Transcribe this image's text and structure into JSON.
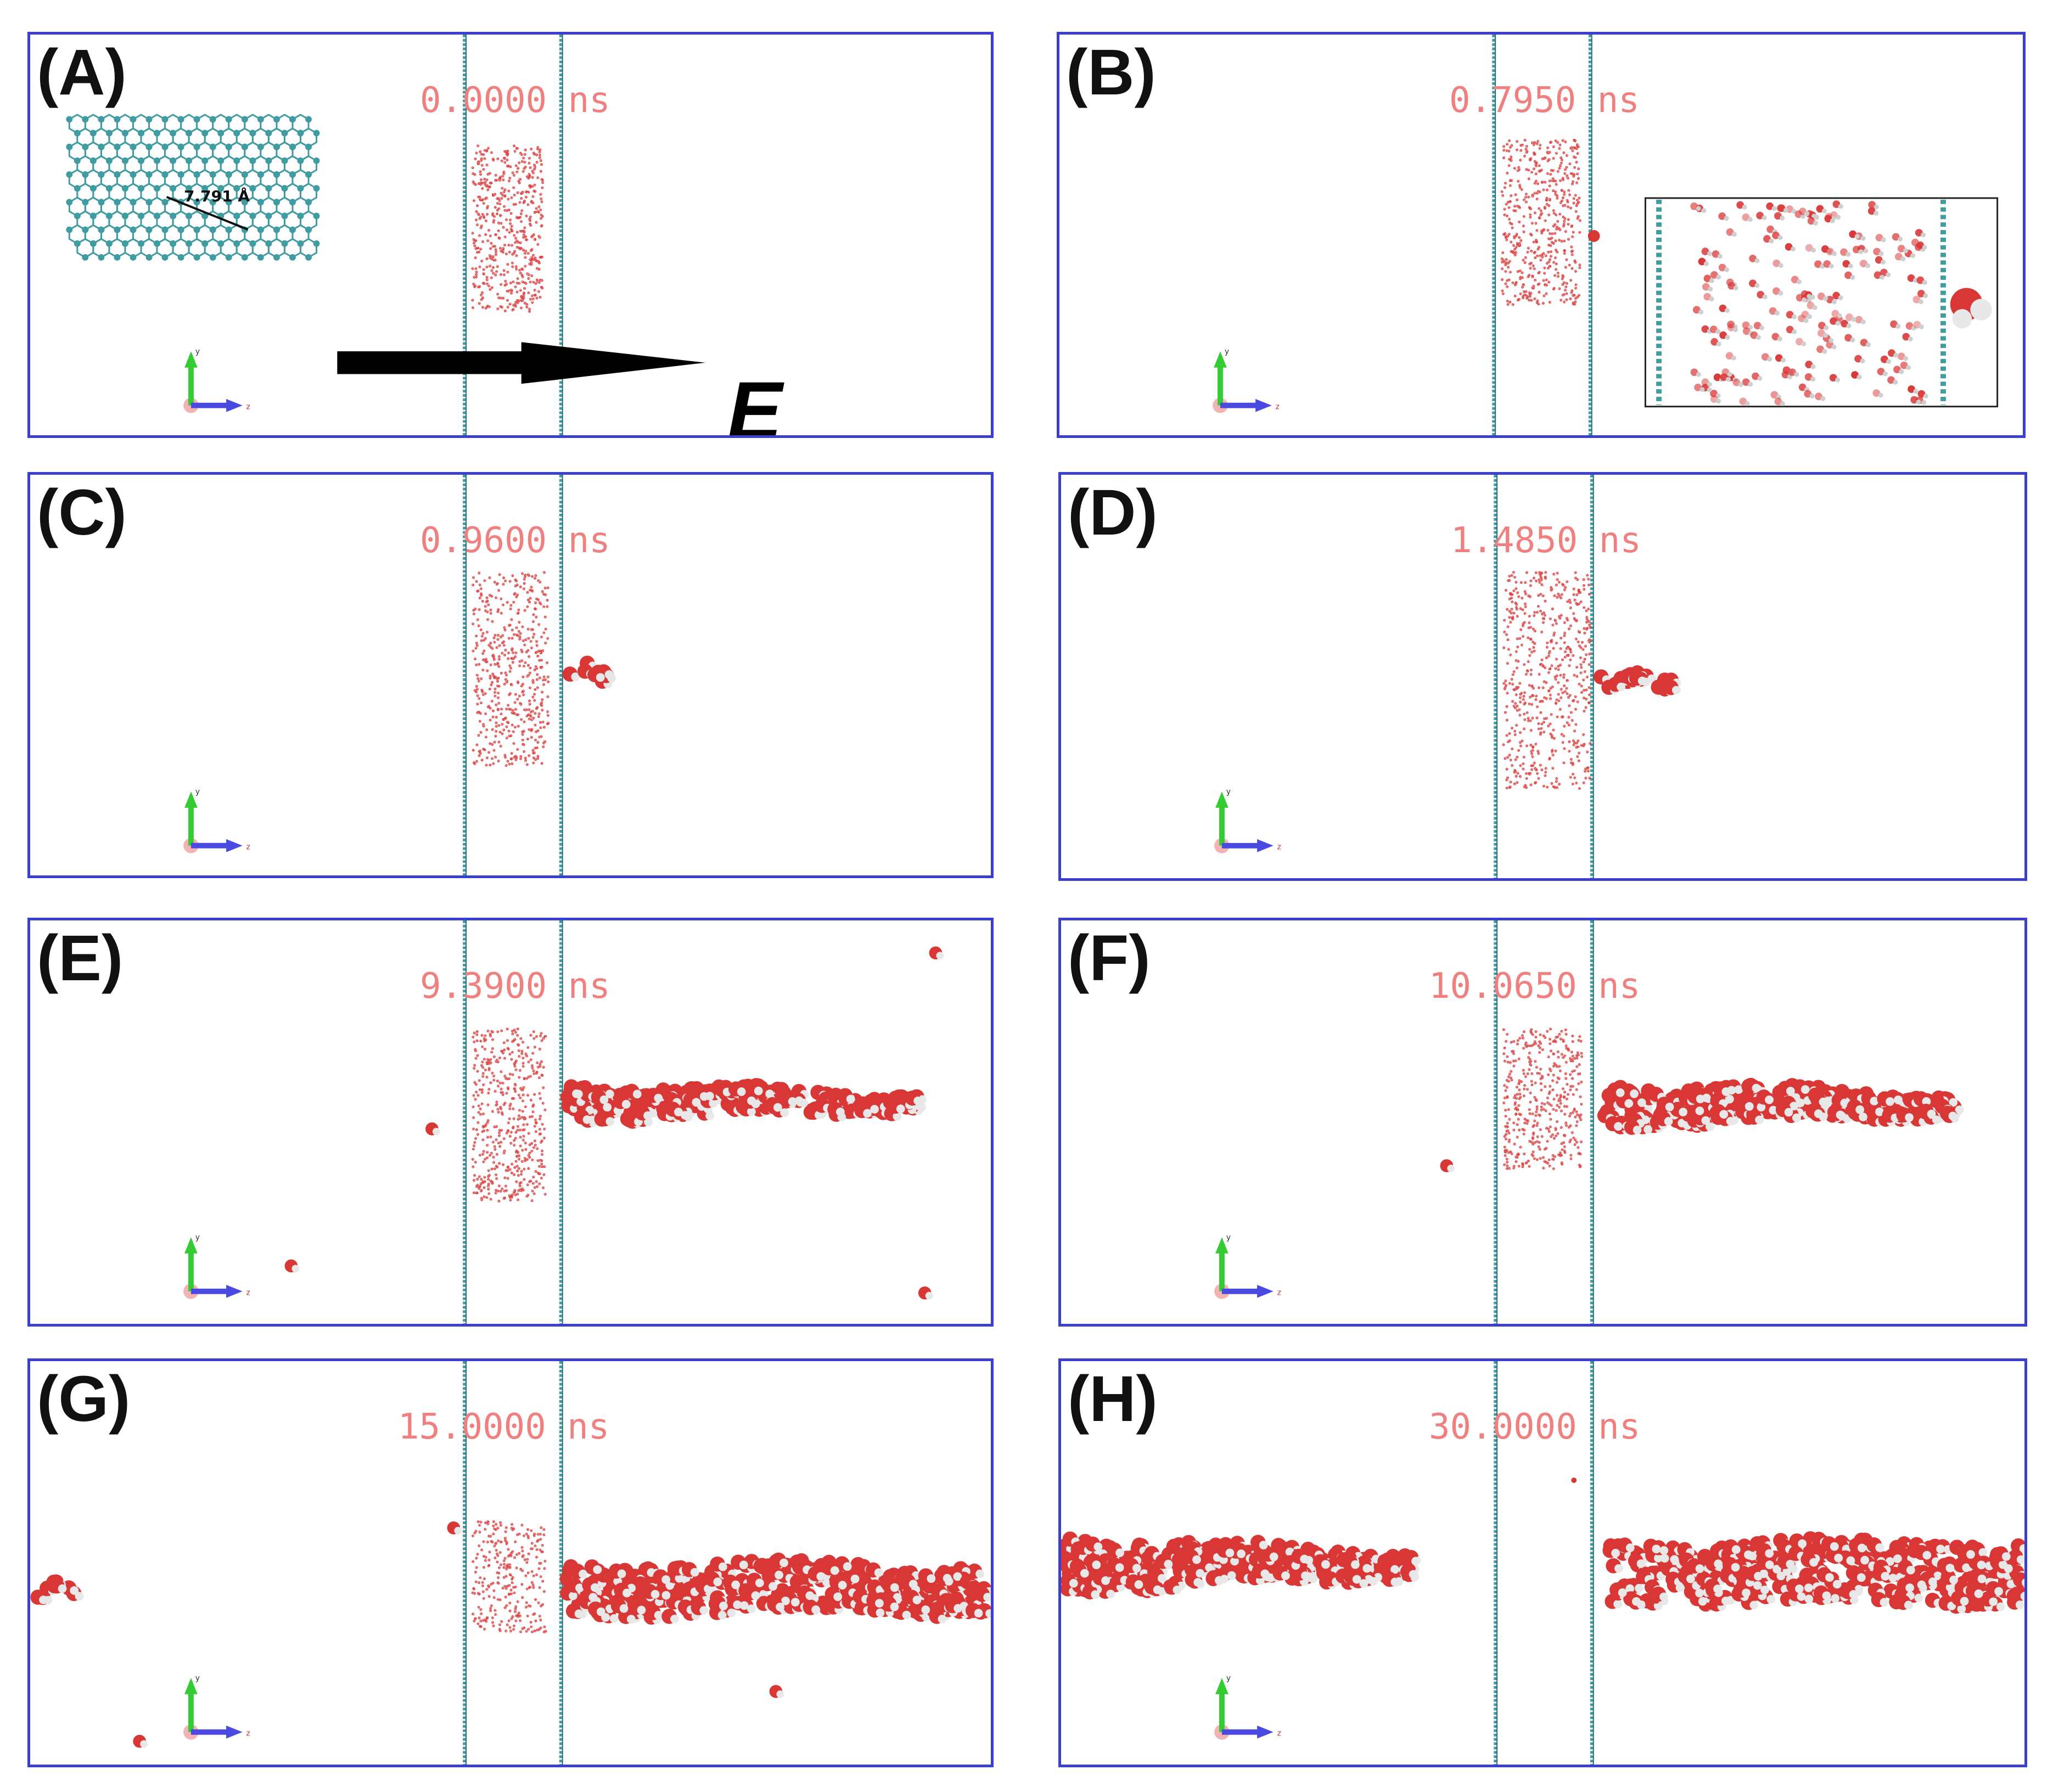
{
  "colors": {
    "panel_border": "#3b3fd0",
    "graphene": "#3f9ca0",
    "oxygen": "#d93636",
    "hydrogen": "#e8e8e8",
    "time_text": "#f08080",
    "axis_y": "#33cc33",
    "axis_z": "#4a4ae0",
    "axis_x": "#f0a0a0"
  },
  "axes": {
    "y_label": "y",
    "z_label": "z"
  },
  "panels": [
    {
      "label": "(A)",
      "time": "0.0000 ns",
      "scene": "initial"
    },
    {
      "label": "(B)",
      "time": "0.7950 ns",
      "scene": "first-molecule"
    },
    {
      "label": "(C)",
      "time": "0.9600 ns",
      "scene": "small-chain"
    },
    {
      "label": "(D)",
      "time": "1.4850 ns",
      "scene": "small-chain"
    },
    {
      "label": "(E)",
      "time": "9.3900 ns",
      "scene": "long-chain"
    },
    {
      "label": "(F)",
      "time": "10.0650 ns",
      "scene": "long-chain"
    },
    {
      "label": "(G)",
      "time": "15.0000 ns",
      "scene": "full-chain"
    },
    {
      "label": "(H)",
      "time": "30.0000 ns",
      "scene": "drained"
    }
  ],
  "graphene_inset": {
    "distance_label": "7.791 Å",
    "color": "graphene"
  },
  "field_arrow": {
    "label": "E"
  }
}
